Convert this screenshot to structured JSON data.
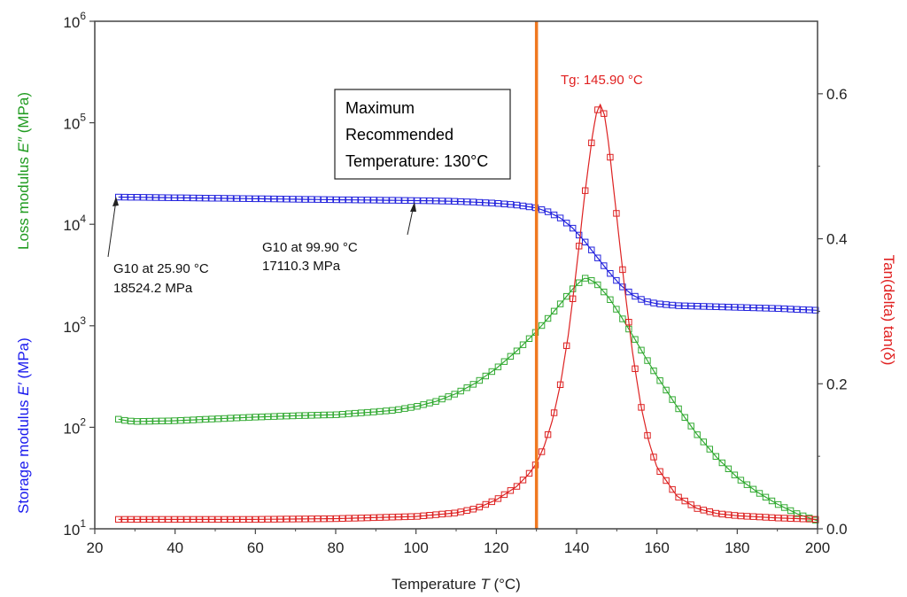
{
  "chart_data": {
    "type": "scatter",
    "x_axis": {
      "label_prefix": "Temperature ",
      "label_var": "T",
      "label_suffix": " (°C)",
      "range": [
        20,
        200
      ],
      "ticks": [
        "20",
        "40",
        "60",
        "80",
        "100",
        "120",
        "140",
        "160",
        "180",
        "200"
      ]
    },
    "y_left": {
      "scale": "log",
      "range": [
        10,
        1000000
      ],
      "tick_values": [
        10,
        100,
        1000,
        10000,
        100000,
        1000000
      ],
      "tick_base": "10",
      "tick_exps": [
        "1",
        "2",
        "3",
        "4",
        "5",
        "6"
      ],
      "label_storage_prefix": "Storage modulus ",
      "label_storage_var": "E′",
      "label_storage_suffix": " (MPa)",
      "label_loss_prefix": "Loss modulus ",
      "label_loss_var": "E″",
      "label_loss_suffix": " (MPa)"
    },
    "y_right": {
      "range": [
        0,
        0.7
      ],
      "ticks": [
        "0.0",
        "0.2",
        "0.4",
        "0.6"
      ],
      "label": "Tan(delta) tan(δ)"
    },
    "series": [
      {
        "color": "#2222dd",
        "points": [
          [
            25.9,
            18524
          ],
          [
            30,
            18450
          ],
          [
            40,
            18250
          ],
          [
            50,
            18050
          ],
          [
            60,
            17850
          ],
          [
            70,
            17650
          ],
          [
            80,
            17450
          ],
          [
            90,
            17300
          ],
          [
            99.9,
            17110
          ],
          [
            105,
            17000
          ],
          [
            110,
            16800
          ],
          [
            115,
            16500
          ],
          [
            120,
            16100
          ],
          [
            125,
            15500
          ],
          [
            130,
            14500
          ],
          [
            133,
            13200
          ],
          [
            136,
            11500
          ],
          [
            139,
            9200
          ],
          [
            142,
            6800
          ],
          [
            145,
            4800
          ],
          [
            148,
            3400
          ],
          [
            151,
            2500
          ],
          [
            154,
            2000
          ],
          [
            157,
            1750
          ],
          [
            160,
            1650
          ],
          [
            165,
            1580
          ],
          [
            170,
            1560
          ],
          [
            180,
            1520
          ],
          [
            190,
            1480
          ],
          [
            200,
            1420
          ]
        ]
      },
      {
        "color": "#33aa33",
        "points": [
          [
            25.9,
            120
          ],
          [
            28,
            116
          ],
          [
            30,
            114
          ],
          [
            40,
            116
          ],
          [
            50,
            121
          ],
          [
            60,
            126
          ],
          [
            70,
            130
          ],
          [
            80,
            133
          ],
          [
            90,
            142
          ],
          [
            95,
            148
          ],
          [
            100,
            160
          ],
          [
            105,
            180
          ],
          [
            110,
            215
          ],
          [
            115,
            275
          ],
          [
            120,
            380
          ],
          [
            125,
            560
          ],
          [
            130,
            880
          ],
          [
            133,
            1200
          ],
          [
            136,
            1650
          ],
          [
            139,
            2300
          ],
          [
            141,
            2750
          ],
          [
            142,
            2950
          ],
          [
            143,
            2900
          ],
          [
            145,
            2600
          ],
          [
            148,
            1900
          ],
          [
            151,
            1250
          ],
          [
            154,
            800
          ],
          [
            157,
            500
          ],
          [
            160,
            320
          ],
          [
            165,
            160
          ],
          [
            170,
            85
          ],
          [
            175,
            50
          ],
          [
            180,
            32
          ],
          [
            185,
            23
          ],
          [
            190,
            17.5
          ],
          [
            195,
            14
          ],
          [
            200,
            12
          ]
        ]
      },
      {
        "color": "#dd2222",
        "points": [
          [
            25.9,
            0.013
          ],
          [
            40,
            0.013
          ],
          [
            60,
            0.013
          ],
          [
            80,
            0.014
          ],
          [
            100,
            0.017
          ],
          [
            110,
            0.022
          ],
          [
            115,
            0.028
          ],
          [
            120,
            0.04
          ],
          [
            125,
            0.058
          ],
          [
            128,
            0.075
          ],
          [
            130,
            0.09
          ],
          [
            132,
            0.115
          ],
          [
            134,
            0.15
          ],
          [
            136,
            0.2
          ],
          [
            138,
            0.27
          ],
          [
            140,
            0.36
          ],
          [
            142,
            0.46
          ],
          [
            144,
            0.545
          ],
          [
            145,
            0.575
          ],
          [
            145.9,
            0.585
          ],
          [
            147,
            0.57
          ],
          [
            148,
            0.53
          ],
          [
            150,
            0.43
          ],
          [
            152,
            0.33
          ],
          [
            154,
            0.24
          ],
          [
            156,
            0.17
          ],
          [
            158,
            0.12
          ],
          [
            160,
            0.085
          ],
          [
            165,
            0.045
          ],
          [
            170,
            0.028
          ],
          [
            175,
            0.021
          ],
          [
            180,
            0.018
          ],
          [
            190,
            0.015
          ],
          [
            200,
            0.013
          ]
        ]
      }
    ],
    "vertical_line": {
      "x": 130,
      "color": "#f07820"
    },
    "colors": {
      "storage": "#1a1aee",
      "loss": "#1f9b1f",
      "tan": "#e02020",
      "axis": "#444444"
    },
    "annotations": {
      "g10_low_line1": "G10 at 25.90 °C",
      "g10_low_line2": "18524.2 MPa",
      "g10_high_line1": "G10 at 99.90 °C",
      "g10_high_line2": "17110.3 MPa",
      "tg_label": "Tg: 145.90 °C",
      "max_temp_line1": "Maximum",
      "max_temp_line2": "Recommended",
      "max_temp_line3": "Temperature: 130°C"
    }
  }
}
